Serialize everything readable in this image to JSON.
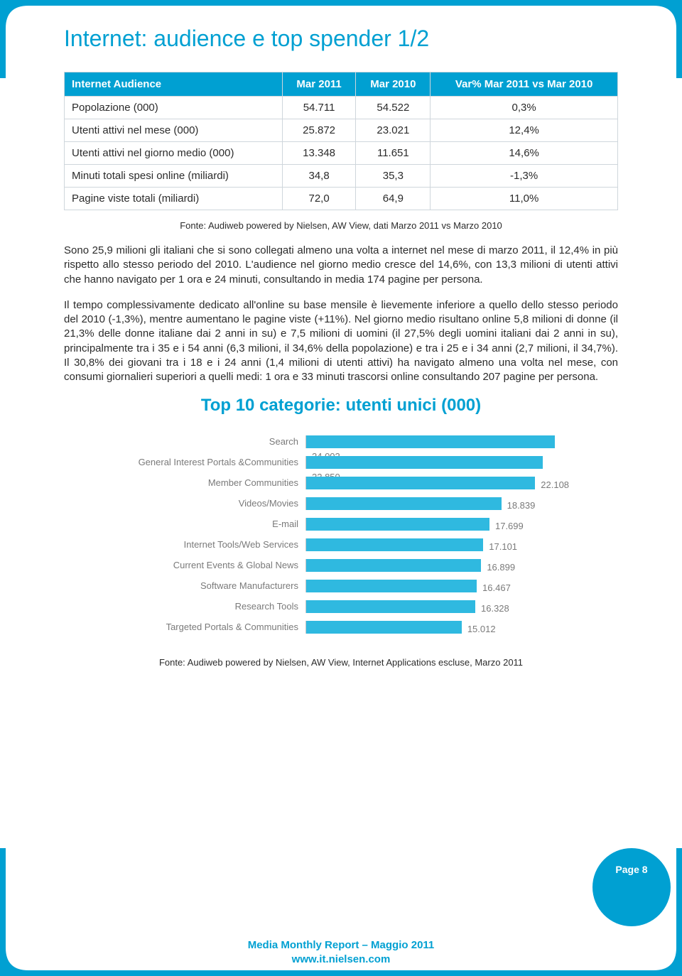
{
  "page": {
    "title": "Internet: audience e top spender  1/2",
    "number_label": "Page 8",
    "footer_line1": "Media Monthly Report – Maggio  2011",
    "footer_line2": "www.it.nielsen.com"
  },
  "colors": {
    "accent": "#00a0d2",
    "bar_fill": "#2fb9e0",
    "text": "#2b2b2b",
    "muted": "#7a7a7a",
    "table_border": "#cfd6dc",
    "background": "#ffffff"
  },
  "table": {
    "headers": [
      "Internet Audience",
      "Mar 2011",
      "Mar 2010",
      "Var% Mar 2011 vs Mar 2010"
    ],
    "rows": [
      [
        "Popolazione (000)",
        "54.711",
        "54.522",
        "0,3%"
      ],
      [
        "Utenti attivi nel mese (000)",
        "25.872",
        "23.021",
        "12,4%"
      ],
      [
        "Utenti attivi nel giorno medio (000)",
        "13.348",
        "11.651",
        "14,6%"
      ],
      [
        "Minuti totali spesi online (miliardi)",
        "34,8",
        "35,3",
        "-1,3%"
      ],
      [
        "Pagine viste totali (miliardi)",
        "72,0",
        "64,9",
        "11,0%"
      ]
    ],
    "source": "Fonte: Audiweb powered by Nielsen, AW View, dati Marzo 2011 vs Marzo 2010"
  },
  "paragraphs": {
    "p1": "Sono 25,9 milioni gli italiani che si sono collegati almeno una volta a internet nel mese di marzo 2011, il 12,4% in più rispetto allo stesso periodo del 2010. L'audience nel giorno medio cresce del 14,6%, con 13,3 milioni di utenti attivi che hanno navigato per 1 ora e 24 minuti, consultando in media 174 pagine per persona.",
    "p2": "Il tempo complessivamente dedicato all'online su base mensile è lievemente inferiore a quello dello stesso periodo del 2010 (-1,3%), mentre aumentano le pagine viste (+11%). Nel giorno medio risultano online 5,8 milioni di donne (il 21,3% delle donne italiane dai 2 anni in su) e 7,5 milioni di uomini (il 27,5% degli uomini italiani dai 2 anni in su), principalmente tra i 35 e i 54 anni (6,3 milioni, il 34,6% della popolazione)  e tra i 25 e i 34 anni (2,7 milioni, il 34,7%). Il 30,8% dei giovani tra i 18 e i 24 anni (1,4 milioni di utenti attivi) ha navigato almeno una volta nel mese, con consumi giornalieri superiori a quelli medi: 1 ora e 33 minuti trascorsi online consultando 207 pagine per persona."
  },
  "chart": {
    "title": "Top 10 categorie: utenti unici (000)",
    "type": "horizontal-bar",
    "max_value": 26000,
    "bar_color": "#2fb9e0",
    "label_color": "#7a7a7a",
    "label_fontsize": 13,
    "background_color": "#ffffff",
    "items": [
      {
        "label": "Search",
        "value": 24002,
        "value_label": "24.002"
      },
      {
        "label": "General Interest Portals &Communities",
        "value": 22850,
        "value_label": "22.850"
      },
      {
        "label": "Member Communities",
        "value": 22108,
        "value_label": "22.108"
      },
      {
        "label": "Videos/Movies",
        "value": 18839,
        "value_label": "18.839"
      },
      {
        "label": "E-mail",
        "value": 17699,
        "value_label": "17.699"
      },
      {
        "label": "Internet Tools/Web Services",
        "value": 17101,
        "value_label": "17.101"
      },
      {
        "label": "Current Events & Global News",
        "value": 16899,
        "value_label": "16.899"
      },
      {
        "label": "Software Manufacturers",
        "value": 16467,
        "value_label": "16.467"
      },
      {
        "label": "Research Tools",
        "value": 16328,
        "value_label": "16.328"
      },
      {
        "label": "Targeted Portals & Communities",
        "value": 15012,
        "value_label": "15.012"
      }
    ],
    "source": "Fonte: Audiweb powered by Nielsen, AW View, Internet Applications escluse, Marzo 2011"
  }
}
